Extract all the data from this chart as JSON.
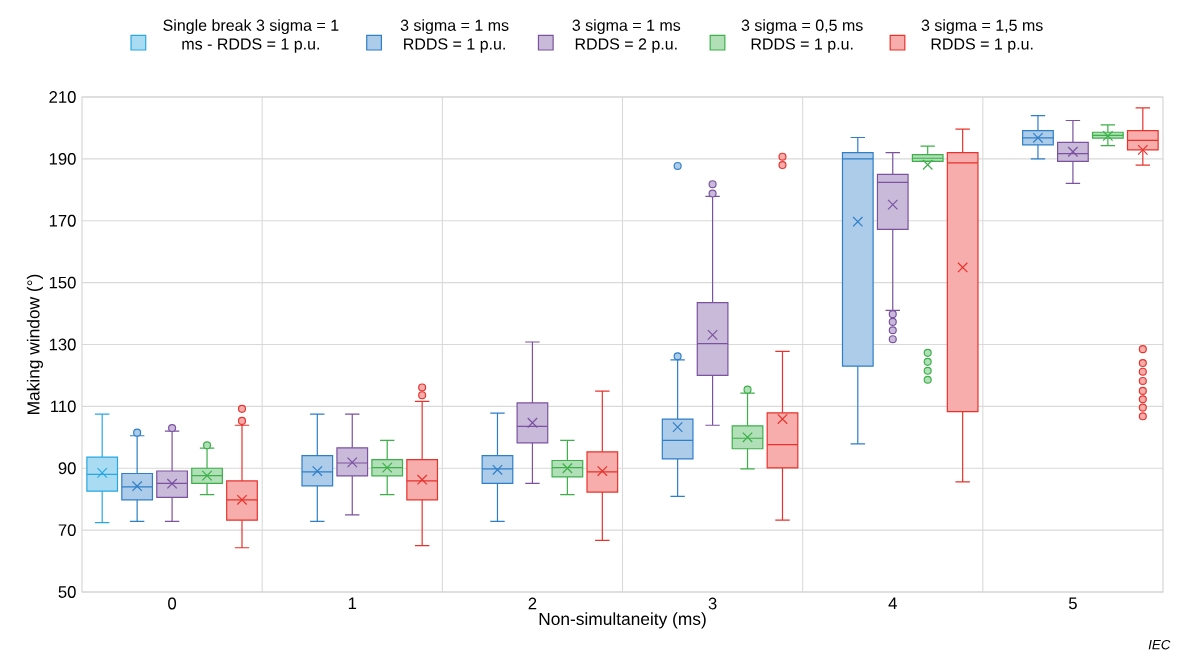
{
  "chart_data": {
    "type": "box",
    "xlabel": "Non-simultaneity (ms)",
    "ylabel": "Making window (°)",
    "categories": [
      "0",
      "1",
      "2",
      "3",
      "4",
      "5"
    ],
    "ylim": [
      50,
      210
    ],
    "yticks": [
      50,
      70,
      90,
      110,
      130,
      150,
      170,
      190,
      210
    ],
    "grid": true,
    "legend": "top",
    "marker": "cross",
    "annotations": [
      "IEC"
    ],
    "series": [
      {
        "name": "Single break 3 sigma = 1 ms - RDDS = 1 p.u.",
        "color": "#29a8e0",
        "boxes": [
          {
            "low": 72.4,
            "q1": 82.6,
            "median": 88,
            "q3": 93.6,
            "high": 107.5,
            "mean": 88.5
          },
          null,
          null,
          null,
          null,
          null
        ]
      },
      {
        "name": "3 sigma = 1 ms RDDS = 1 p.u.",
        "color": "#2f7fc8",
        "boxes": [
          {
            "low": 72.8,
            "q1": 79.8,
            "median": 84,
            "q3": 88.3,
            "high": 100.5,
            "mean": 84.2,
            "outliers": [
              101.5
            ]
          },
          {
            "low": 72.8,
            "q1": 84.3,
            "median": 88.8,
            "q3": 94.1,
            "high": 107.5,
            "mean": 89.1
          },
          {
            "low": 72.8,
            "q1": 85.1,
            "median": 89.8,
            "q3": 94.1,
            "high": 107.8,
            "mean": 89.5
          },
          {
            "low": 80.9,
            "q1": 93,
            "median": 99,
            "q3": 105.9,
            "high": 125,
            "mean": 103.3,
            "outliers": [
              126.2,
              187.7
            ]
          },
          {
            "low": 97.9,
            "q1": 123,
            "median": 190,
            "q3": 192,
            "high": 196.9,
            "mean": 169.7
          },
          {
            "low": 190,
            "q1": 194.5,
            "median": 196.8,
            "q3": 199.1,
            "high": 204,
            "mean": 196.8
          }
        ]
      },
      {
        "name": "3 sigma = 1 ms RDDS = 2 p.u.",
        "color": "#7b52a0",
        "boxes": [
          {
            "low": 72.8,
            "q1": 80.6,
            "median": 85.1,
            "q3": 89.1,
            "high": 102,
            "mean": 85,
            "outliers": [
              103
            ]
          },
          {
            "low": 74.9,
            "q1": 87.5,
            "median": 91.7,
            "q3": 96.6,
            "high": 107.5,
            "mean": 91.9
          },
          {
            "low": 85.1,
            "q1": 98.2,
            "median": 103.5,
            "q3": 111.1,
            "high": 130.8,
            "mean": 104.7
          },
          {
            "low": 103.9,
            "q1": 120,
            "median": 130.3,
            "q3": 143.5,
            "high": 177.9,
            "mean": 133.1,
            "outliers": [
              178.8,
              181.8
            ]
          },
          {
            "low": 141,
            "q1": 167.2,
            "median": 182.4,
            "q3": 185,
            "high": 192,
            "mean": 175.2,
            "outliers": [
              131.7,
              134.6,
              137.3,
              139.8
            ]
          },
          {
            "low": 182.1,
            "q1": 189.2,
            "median": 191.7,
            "q3": 195.3,
            "high": 202.4,
            "mean": 192.3
          }
        ]
      },
      {
        "name": "3 sigma = 0,5 ms RDDS = 1 p.u.",
        "color": "#3db04a",
        "boxes": [
          {
            "low": 81.5,
            "q1": 85.1,
            "median": 87.6,
            "q3": 90,
            "high": 96.5,
            "mean": 87.6,
            "outliers": [
              97.4
            ]
          },
          {
            "low": 81.5,
            "q1": 87.5,
            "median": 90.2,
            "q3": 92.8,
            "high": 99,
            "mean": 90.2
          },
          {
            "low": 81.5,
            "q1": 87.2,
            "median": 90.2,
            "q3": 92.5,
            "high": 99,
            "mean": 90
          },
          {
            "low": 89.8,
            "q1": 96.3,
            "median": 99.7,
            "q3": 103.7,
            "high": 114.3,
            "mean": 100,
            "outliers": [
              115.4
            ]
          },
          {
            "low": 189.2,
            "q1": 189.2,
            "median": 190.2,
            "q3": 191.4,
            "high": 194.1,
            "mean": 188.1,
            "outliers": [
              118.6,
              121.5,
              124.4,
              127.3
            ]
          },
          {
            "low": 194.3,
            "q1": 196.7,
            "median": 197.6,
            "q3": 198.6,
            "high": 201,
            "mean": 197.4
          }
        ]
      },
      {
        "name": "3 sigma = 1,5 ms RDDS = 1 p.u.",
        "color": "#e8332d",
        "boxes": [
          {
            "low": 64.3,
            "q1": 73.2,
            "median": 79.8,
            "q3": 85.9,
            "high": 103.9,
            "mean": 79.8,
            "outliers": [
              105.3,
              109.2
            ]
          },
          {
            "low": 65,
            "q1": 79.8,
            "median": 85.9,
            "q3": 92.8,
            "high": 111.6,
            "mean": 86.3,
            "outliers": [
              113.6,
              116.1
            ]
          },
          {
            "low": 66.7,
            "q1": 82.3,
            "median": 88.8,
            "q3": 95.3,
            "high": 114.9,
            "mean": 89.1
          },
          {
            "low": 73.2,
            "q1": 90.1,
            "median": 97.6,
            "q3": 107.9,
            "high": 127.8,
            "mean": 105.9,
            "outliers": [
              188,
              190.7
            ]
          },
          {
            "low": 85.6,
            "q1": 108.3,
            "median": 188.7,
            "q3": 192,
            "high": 199.6,
            "mean": 154.9
          },
          {
            "low": 188,
            "q1": 192.9,
            "median": 196,
            "q3": 199.1,
            "high": 206.5,
            "mean": 192.9,
            "outliers": [
              106.8,
              109.6,
              112.3,
              115,
              118.2,
              121.2,
              124,
              128.5
            ]
          }
        ]
      }
    ]
  }
}
